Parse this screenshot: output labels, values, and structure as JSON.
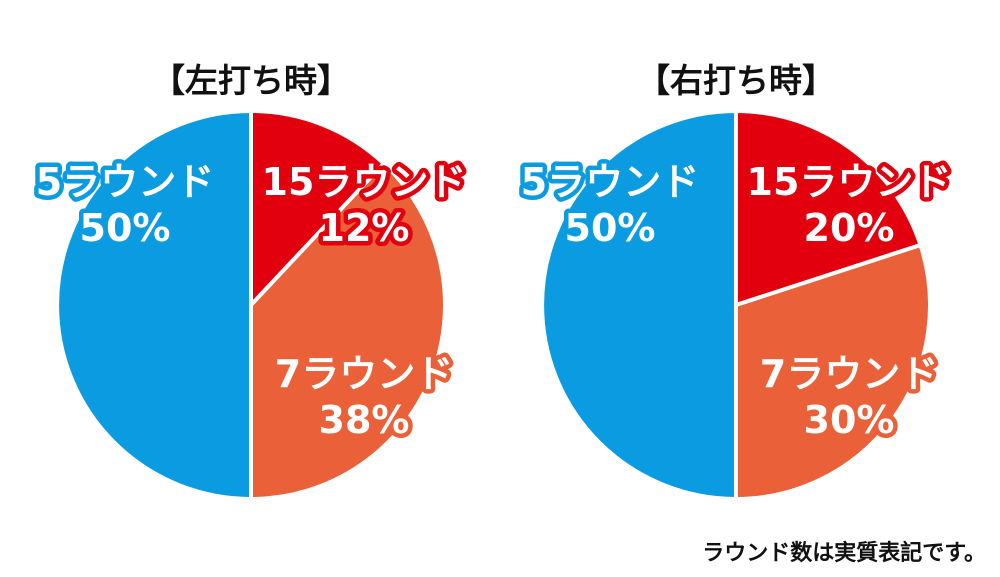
{
  "chart_data": [
    {
      "type": "pie",
      "title": "【左打ち時】",
      "slices": [
        {
          "name": "5ラウンド",
          "value": 50,
          "label": "50%",
          "color": "#0a9be0"
        },
        {
          "name": "15ラウンド",
          "value": 12,
          "label": "12%",
          "color": "#e2000f"
        },
        {
          "name": "7ラウンド",
          "value": 38,
          "label": "38%",
          "color": "#ea6038"
        }
      ]
    },
    {
      "type": "pie",
      "title": "【右打ち時】",
      "slices": [
        {
          "name": "5ラウンド",
          "value": 50,
          "label": "50%",
          "color": "#0a9be0"
        },
        {
          "name": "15ラウンド",
          "value": 20,
          "label": "20%",
          "color": "#e2000f"
        },
        {
          "name": "7ラウンド",
          "value": 30,
          "label": "30%",
          "color": "#ea6038"
        }
      ]
    }
  ],
  "footnote": "ラウンド数は実質表記です。"
}
